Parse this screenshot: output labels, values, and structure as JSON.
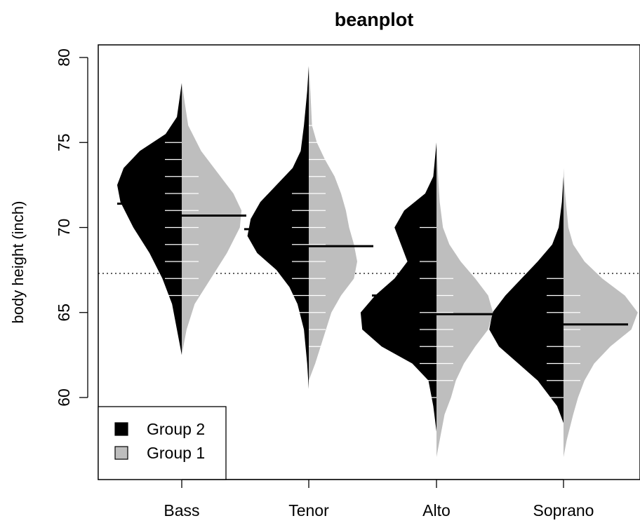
{
  "chart_data": {
    "type": "beanplot",
    "title": "beanplot",
    "xlabel": "",
    "ylabel": "body height (inch)",
    "ylim": [
      55,
      80
    ],
    "yticks": [
      60,
      65,
      70,
      75,
      80
    ],
    "categories": [
      "Bass",
      "Tenor",
      "Alto",
      "Soprano"
    ],
    "overall_mean": 67.3,
    "legend": {
      "position": "bottom-left",
      "entries": [
        {
          "label": "Group 2",
          "color": "#000000"
        },
        {
          "label": "Group 1",
          "color": "#bebebe"
        }
      ]
    },
    "series": [
      {
        "name": "Group 2",
        "side": "left",
        "color": "#000000",
        "line_color": "#ffffff",
        "means": [
          71.4,
          69.9,
          66.0,
          64.0
        ],
        "density": [
          [
            [
              62.5,
              0
            ],
            [
              64,
              0.03
            ],
            [
              65.5,
              0.06
            ],
            [
              67,
              0.12
            ],
            [
              68.5,
              0.2
            ],
            [
              70,
              0.3
            ],
            [
              71.5,
              0.38
            ],
            [
              72.5,
              0.4
            ],
            [
              73.5,
              0.36
            ],
            [
              74.5,
              0.26
            ],
            [
              75.5,
              0.1
            ],
            [
              76.5,
              0.03
            ],
            [
              78.5,
              0
            ]
          ],
          [
            [
              60.5,
              0
            ],
            [
              62,
              0.01
            ],
            [
              64,
              0.03
            ],
            [
              65.5,
              0.07
            ],
            [
              66.5,
              0.12
            ],
            [
              67.5,
              0.2
            ],
            [
              68.5,
              0.32
            ],
            [
              69.5,
              0.38
            ],
            [
              70.5,
              0.36
            ],
            [
              71.5,
              0.3
            ],
            [
              72.5,
              0.2
            ],
            [
              73.5,
              0.1
            ],
            [
              74.5,
              0.05
            ],
            [
              76,
              0.03
            ],
            [
              78,
              0.01
            ],
            [
              79.5,
              0
            ]
          ],
          [
            [
              58,
              0
            ],
            [
              59.5,
              0.02
            ],
            [
              61,
              0.05
            ],
            [
              62,
              0.15
            ],
            [
              63,
              0.34
            ],
            [
              64,
              0.46
            ],
            [
              65,
              0.47
            ],
            [
              66,
              0.38
            ],
            [
              67,
              0.26
            ],
            [
              68,
              0.18
            ],
            [
              69,
              0.22
            ],
            [
              70,
              0.26
            ],
            [
              71,
              0.2
            ],
            [
              72,
              0.07
            ],
            [
              73,
              0.02
            ],
            [
              75,
              0
            ]
          ],
          [
            [
              58.5,
              0
            ],
            [
              59.5,
              0.04
            ],
            [
              61,
              0.16
            ],
            [
              62,
              0.28
            ],
            [
              63,
              0.4
            ],
            [
              64,
              0.46
            ],
            [
              65,
              0.44
            ],
            [
              66,
              0.36
            ],
            [
              67,
              0.26
            ],
            [
              68,
              0.16
            ],
            [
              69,
              0.07
            ],
            [
              70,
              0.03
            ],
            [
              71.5,
              0.01
            ],
            [
              73,
              0
            ]
          ]
        ],
        "observations": [
          [
            66,
            67,
            68,
            69,
            70,
            71,
            72,
            73,
            74,
            75
          ],
          [
            65,
            66,
            67,
            68,
            69,
            70,
            71,
            72
          ],
          [
            60,
            61,
            62,
            63,
            64,
            65,
            66,
            67,
            68,
            70
          ],
          [
            60,
            61,
            62,
            63,
            64,
            65,
            66,
            67
          ]
        ]
      },
      {
        "name": "Group 1",
        "side": "right",
        "color": "#bebebe",
        "line_color": "#ffffff",
        "means": [
          70.7,
          68.9,
          64.9,
          64.3
        ],
        "density": [
          [
            [
              62.5,
              0
            ],
            [
              64,
              0.03
            ],
            [
              65.5,
              0.08
            ],
            [
              67,
              0.18
            ],
            [
              68.5,
              0.28
            ],
            [
              70,
              0.36
            ],
            [
              71,
              0.37
            ],
            [
              72,
              0.32
            ],
            [
              73,
              0.24
            ],
            [
              74.5,
              0.12
            ],
            [
              76,
              0.04
            ],
            [
              78.5,
              0
            ]
          ],
          [
            [
              61,
              0
            ],
            [
              62,
              0.04
            ],
            [
              63.5,
              0.09
            ],
            [
              65,
              0.14
            ],
            [
              66,
              0.2
            ],
            [
              67,
              0.28
            ],
            [
              68,
              0.3
            ],
            [
              69,
              0.28
            ],
            [
              70,
              0.25
            ],
            [
              71,
              0.23
            ],
            [
              72,
              0.2
            ],
            [
              73,
              0.16
            ],
            [
              74,
              0.1
            ],
            [
              75,
              0.05
            ],
            [
              76,
              0.02
            ],
            [
              78,
              0.01
            ],
            [
              79.5,
              0
            ]
          ],
          [
            [
              56.5,
              0
            ],
            [
              57.5,
              0.02
            ],
            [
              59,
              0.05
            ],
            [
              60,
              0.09
            ],
            [
              61,
              0.12
            ],
            [
              62,
              0.17
            ],
            [
              63,
              0.24
            ],
            [
              64,
              0.32
            ],
            [
              65,
              0.35
            ],
            [
              66,
              0.32
            ],
            [
              67,
              0.24
            ],
            [
              68,
              0.15
            ],
            [
              69,
              0.08
            ],
            [
              70,
              0.04
            ],
            [
              71.5,
              0.02
            ],
            [
              73,
              0.01
            ],
            [
              75,
              0
            ]
          ],
          [
            [
              56.5,
              0
            ],
            [
              57.5,
              0.02
            ],
            [
              59,
              0.06
            ],
            [
              60,
              0.09
            ],
            [
              61,
              0.13
            ],
            [
              62,
              0.19
            ],
            [
              63,
              0.29
            ],
            [
              64,
              0.42
            ],
            [
              65,
              0.46
            ],
            [
              66,
              0.38
            ],
            [
              67,
              0.24
            ],
            [
              68,
              0.13
            ],
            [
              69,
              0.06
            ],
            [
              70,
              0.03
            ],
            [
              72,
              0.01
            ],
            [
              73.5,
              0
            ]
          ]
        ],
        "observations": [
          [
            66,
            67,
            68,
            69,
            70,
            71,
            72,
            73
          ],
          [
            63,
            64,
            65,
            66,
            67,
            68,
            69,
            70,
            71,
            72,
            73,
            74,
            75,
            76
          ],
          [
            61,
            62,
            63,
            64,
            65,
            66,
            67
          ],
          [
            61,
            62,
            63,
            64,
            65,
            66
          ]
        ]
      }
    ]
  }
}
